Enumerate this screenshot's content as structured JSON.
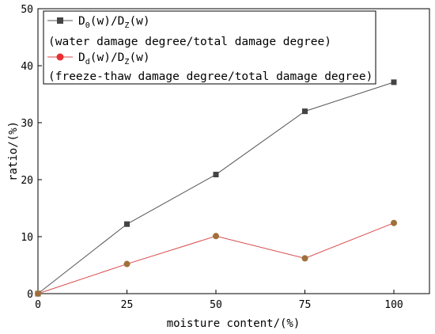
{
  "chart_data": {
    "type": "line",
    "xlabel": "moisture content/(%)",
    "ylabel": "ratio/(%)",
    "xlim": [
      0,
      110
    ],
    "ylim": [
      0,
      50
    ],
    "x_ticks": [
      0,
      25,
      50,
      75,
      100
    ],
    "y_ticks": [
      0,
      10,
      20,
      30,
      40,
      50
    ],
    "grid": false,
    "legend_position": "top-left",
    "series": [
      {
        "name": "D0(w)/DZ(w)",
        "name_main": "D",
        "name_sub": "0",
        "name_mid": "(w)/D",
        "name_sub2": "Z",
        "name_tail": "(w)",
        "description": "(water damage degree/total damage degree)",
        "marker": "square",
        "line_color": "#555555",
        "marker_color": "#444444",
        "x": [
          0,
          25,
          50,
          75,
          100
        ],
        "y": [
          0,
          12.2,
          20.9,
          32.0,
          37.1
        ]
      },
      {
        "name": "Dd(w)/DZ(w)",
        "name_main": "D",
        "name_sub": "d",
        "name_mid": "(w)/D",
        "name_sub2": "Z",
        "name_tail": "(w)",
        "description": "(freeze-thaw damage degree/total damage degree)",
        "marker": "circle",
        "line_color": "#d94a4a",
        "marker_color": "#a0703a",
        "legend_marker_color": "#e83030",
        "x": [
          0,
          25,
          50,
          75,
          100
        ],
        "y": [
          0,
          5.2,
          10.1,
          6.2,
          12.4
        ]
      }
    ]
  }
}
